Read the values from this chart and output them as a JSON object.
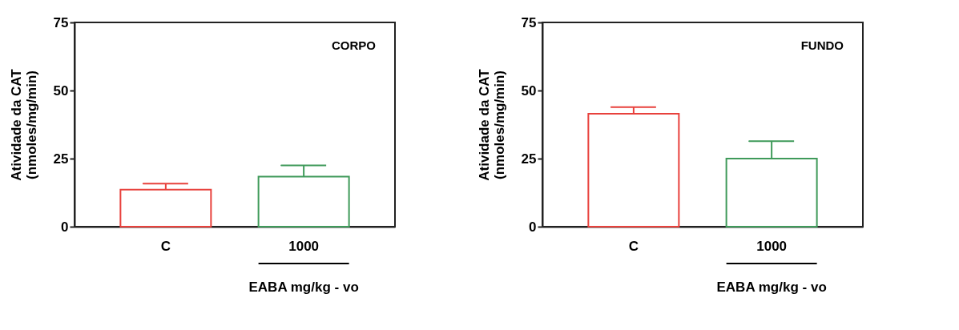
{
  "chart_data": [
    {
      "type": "bar",
      "categories": [
        "C",
        "1000"
      ],
      "values": [
        13.6,
        18.4
      ],
      "colors": [
        "#e8413c",
        "#3f9a5a"
      ],
      "errors": [
        [
          13.6,
          15.8
        ],
        [
          18.4,
          22.5
        ]
      ],
      "ylim": [
        0,
        75
      ],
      "yticks": [
        0,
        25,
        50,
        75
      ],
      "ylabel": "Atividade da CAT\n(nmoles/mg/min)",
      "xlabel": "EABA mg/kg - vo",
      "annotations": [
        "CORPO"
      ],
      "grid": false
    },
    {
      "type": "bar",
      "categories": [
        "C",
        "1000"
      ],
      "values": [
        41.5,
        25.0
      ],
      "colors": [
        "#e8413c",
        "#3f9a5a"
      ],
      "errors": [
        [
          41.5,
          43.9
        ],
        [
          25.0,
          31.4
        ]
      ],
      "ylim": [
        0,
        75
      ],
      "yticks": [
        0,
        25,
        50,
        75
      ],
      "ylabel": "Atividade da CAT\n(nmoles/mg/min)",
      "xlabel": "EABA mg/kg - vo",
      "annotations": [
        "FUNDO"
      ],
      "grid": false
    }
  ]
}
